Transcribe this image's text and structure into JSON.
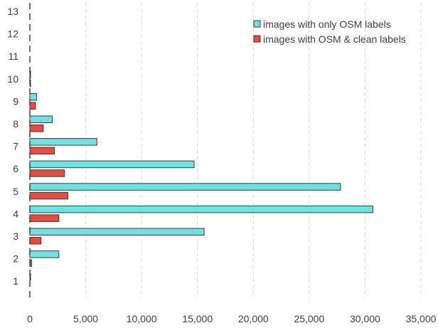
{
  "chart_data": {
    "type": "bar",
    "orientation": "horizontal",
    "categories": [
      "1",
      "2",
      "3",
      "4",
      "5",
      "6",
      "7",
      "8",
      "9",
      "10",
      "11",
      "12",
      "13"
    ],
    "series": [
      {
        "name": "images with only OSM labels",
        "color": "#6fe3e3",
        "values": [
          20,
          2600,
          15600,
          30700,
          27800,
          14700,
          6000,
          2000,
          600,
          40,
          0,
          0,
          0
        ]
      },
      {
        "name": "images with OSM & clean labels",
        "color": "#e84a3f",
        "values": [
          0,
          150,
          1000,
          2600,
          3400,
          3100,
          2200,
          1200,
          500,
          20,
          0,
          0,
          0
        ]
      }
    ],
    "xlim": [
      0,
      35000
    ],
    "x_ticks": [
      "0",
      "5,000",
      "10,000",
      "15,000",
      "20,000",
      "25,000",
      "30,000",
      "35,000"
    ],
    "x_tick_values": [
      0,
      5000,
      10000,
      15000,
      20000,
      25000,
      30000,
      35000
    ],
    "grid": "vertical dashed",
    "legend_position": "top-right",
    "title": "",
    "xlabel": "",
    "ylabel": ""
  }
}
